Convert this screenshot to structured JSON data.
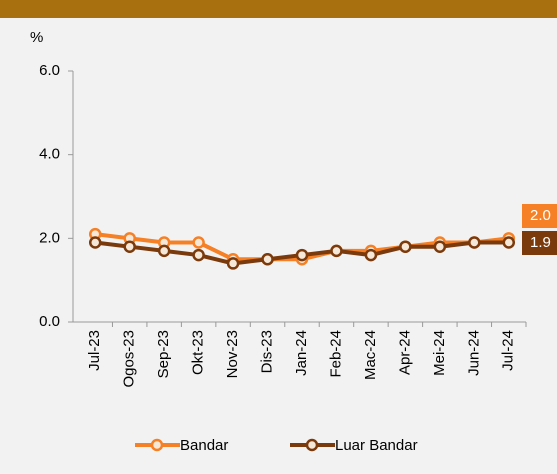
{
  "chart_data": {
    "type": "line",
    "y_unit_label": "%",
    "categories": [
      "Jul-23",
      "Ogos-23",
      "Sep-23",
      "Okt-23",
      "Nov-23",
      "Dis-23",
      "Jan-24",
      "Feb-24",
      "Mac-24",
      "Apr-24",
      "Mei-24",
      "Jun-24",
      "Jul-24"
    ],
    "series": [
      {
        "name": "Bandar",
        "color": "#f58025",
        "values": [
          2.1,
          2.0,
          1.9,
          1.9,
          1.5,
          1.5,
          1.5,
          1.7,
          1.7,
          1.8,
          1.9,
          1.9,
          2.0
        ],
        "value_labels": [
          null,
          null,
          null,
          null,
          null,
          null,
          null,
          null,
          null,
          null,
          null,
          null,
          "2.0"
        ]
      },
      {
        "name": "Luar Bandar",
        "color": "#7b3a0c",
        "values": [
          1.9,
          1.8,
          1.7,
          1.6,
          1.4,
          1.5,
          1.6,
          1.7,
          1.6,
          1.8,
          1.8,
          1.9,
          1.9
        ],
        "value_labels": [
          null,
          null,
          null,
          null,
          null,
          null,
          null,
          null,
          null,
          null,
          null,
          null,
          "1.9"
        ]
      }
    ],
    "ylim": [
      0,
      6
    ],
    "yticks": [
      {
        "value": 0,
        "label": "0.0"
      },
      {
        "value": 2,
        "label": "2.0"
      },
      {
        "value": 4,
        "label": "4.0"
      },
      {
        "value": 6,
        "label": "6.0"
      }
    ],
    "legend": "bottom"
  }
}
